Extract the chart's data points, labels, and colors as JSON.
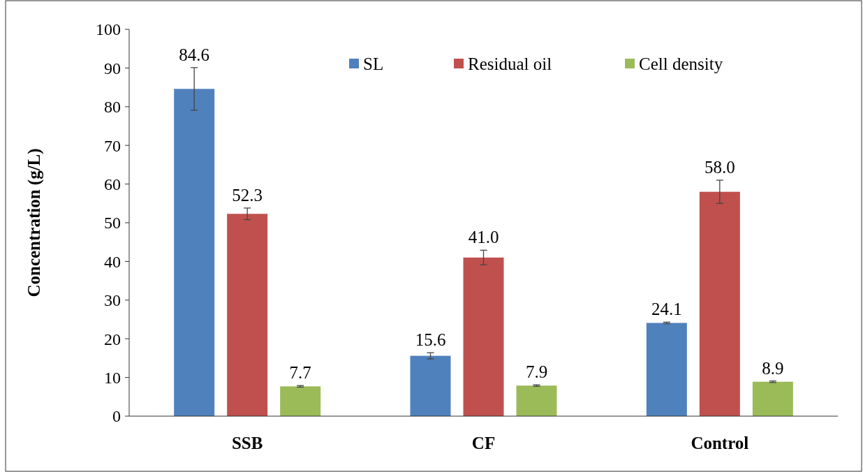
{
  "chart_data": {
    "type": "bar",
    "ylabel": "Concentration (g/L)",
    "categories": [
      "SSB",
      "CF",
      "Control"
    ],
    "series": [
      {
        "name": "SL",
        "color": "#4f81bd",
        "values": [
          84.6,
          15.6,
          24.1
        ],
        "errors": [
          5.5,
          0.8,
          0.2
        ]
      },
      {
        "name": "Residual oil",
        "color": "#c0504d",
        "values": [
          52.3,
          41.0,
          58.0
        ],
        "errors": [
          1.5,
          1.9,
          3
        ]
      },
      {
        "name": "Cell density",
        "color": "#9bbb59",
        "values": [
          7.7,
          7.9,
          8.9
        ],
        "errors": [
          0.2,
          0.2,
          0.2
        ]
      }
    ],
    "value_labels": [
      [
        "84.6",
        "15.6",
        "24.1"
      ],
      [
        "52.3",
        "41.0",
        "58.0"
      ],
      [
        "7.7",
        "7.9",
        "8.9"
      ]
    ],
    "ylim": [
      0,
      100
    ],
    "yticks": [
      0,
      10,
      20,
      30,
      40,
      50,
      60,
      70,
      80,
      90,
      100
    ],
    "grid": false,
    "legend": "top"
  }
}
